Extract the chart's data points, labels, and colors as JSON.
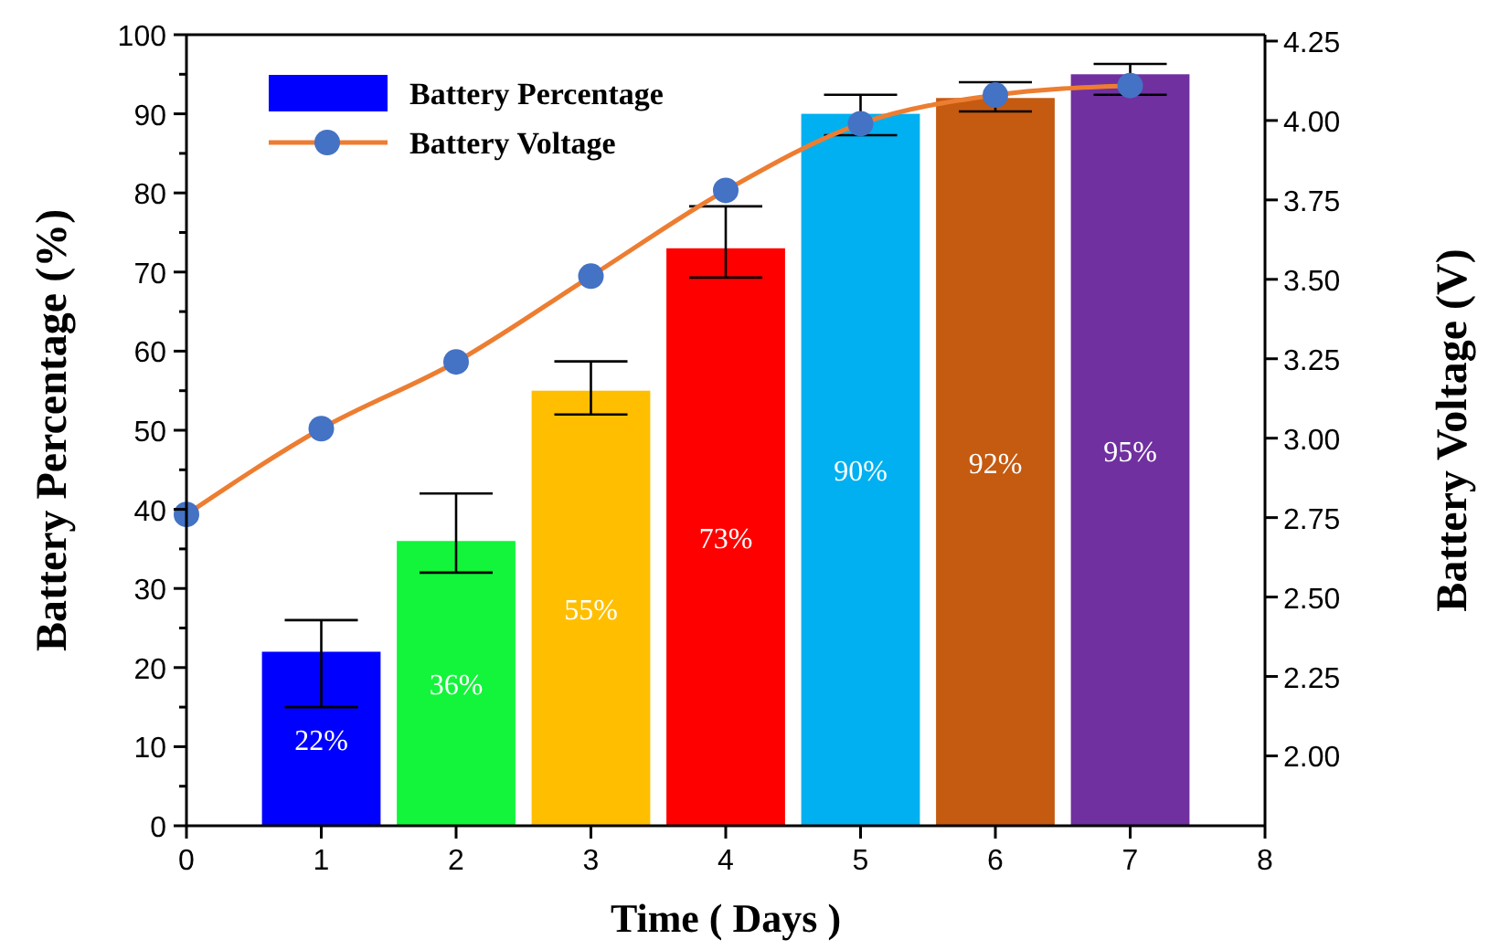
{
  "chart_data": {
    "type": "bar",
    "xlabel": "Time ( Days )",
    "ylabel": "Battery Percentage (%)",
    "y2label": "Battery Voltage (V)",
    "xlim": [
      0,
      8
    ],
    "xticks": [
      0,
      1,
      2,
      3,
      4,
      5,
      6,
      7,
      8
    ],
    "ylim": [
      0,
      100
    ],
    "yticks": [
      0,
      {
        "value": 5,
        "label": null
      },
      10,
      {
        "value": 15,
        "label": null
      },
      20,
      {
        "value": 25,
        "label": null
      },
      30,
      {
        "value": 35,
        "label": null
      },
      40,
      {
        "value": 45,
        "label": null
      },
      50,
      {
        "value": 55,
        "label": null
      },
      60,
      {
        "value": 65,
        "label": null
      },
      70,
      {
        "value": 75,
        "label": null
      },
      80,
      {
        "value": 85,
        "label": null
      },
      90,
      {
        "value": 95,
        "label": null
      },
      100
    ],
    "y2lim": [
      1.78,
      4.27
    ],
    "y2ticks": [
      {
        "value": 2,
        "label": "2.00"
      },
      {
        "value": 2.25,
        "label": "2.25"
      },
      {
        "value": 2.5,
        "label": "2.50"
      },
      {
        "value": 2.75,
        "label": "2.75"
      },
      {
        "value": 3,
        "label": "3.00"
      },
      {
        "value": 3.25,
        "label": "3.25"
      },
      {
        "value": 3.5,
        "label": "3.50"
      },
      {
        "value": 3.75,
        "label": "3.75"
      },
      {
        "value": 4,
        "label": "4.00"
      },
      {
        "value": 4.25,
        "label": "4.25"
      }
    ],
    "legend": "top left",
    "grid": false,
    "series": [
      {
        "name": "Battery Percentage",
        "x": [
          1,
          2,
          3,
          4,
          5,
          6,
          7
        ],
        "values": [
          22,
          36,
          55,
          73,
          90,
          92,
          95
        ],
        "colors": [
          "#0000ff",
          "#12f53a",
          "#ffbf00",
          "#ff0000",
          "#00b0f0",
          "#c55a11",
          "#7030a0"
        ],
        "errors": [
          [
            15,
            26
          ],
          [
            32,
            42
          ],
          [
            52,
            58.7
          ],
          [
            69.3,
            78.3
          ],
          [
            87.3,
            92.4
          ],
          [
            90.3,
            94
          ],
          [
            92.4,
            96.3
          ]
        ],
        "value_labels": [
          "22%",
          "36%",
          "55%",
          "73%",
          "90%",
          "92%",
          "95%"
        ]
      },
      {
        "name": "Battery Voltage",
        "type": "line",
        "axis": "y2",
        "x": [
          0,
          1,
          2,
          3,
          4,
          5,
          6,
          7
        ],
        "values": [
          2.76,
          3.03,
          3.24,
          3.51,
          3.78,
          3.99,
          4.08,
          4.11
        ],
        "color": "#ed7d31",
        "marker": "circle",
        "colors": [
          "#4472c4",
          "#4472c4",
          "#4472c4",
          "#4472c4",
          "#4472c4",
          "#4472c4",
          "#4472c4",
          "#4472c4"
        ]
      }
    ]
  }
}
